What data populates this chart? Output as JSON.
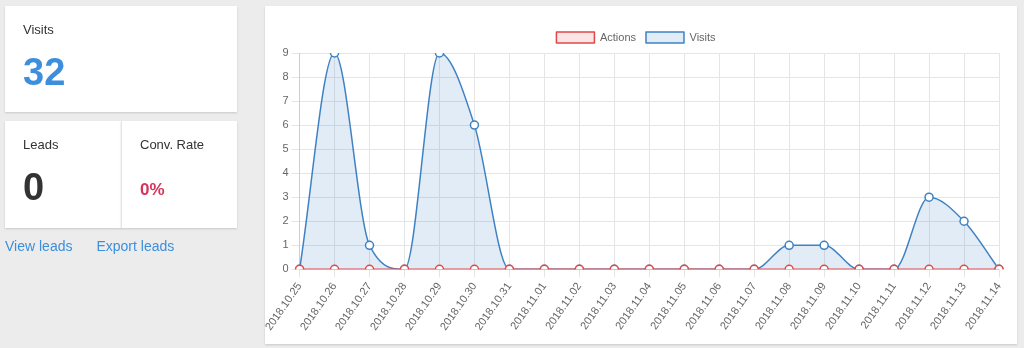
{
  "chart_data": [
    {
      "type": "other",
      "title": "Visits",
      "annotations": [
        "32"
      ]
    },
    {
      "type": "other",
      "title": "Leads",
      "annotations": [
        "0"
      ]
    },
    {
      "type": "other",
      "title": "Conv. Rate",
      "annotations": [
        "0%"
      ]
    },
    {
      "type": "other",
      "annotations": [
        "View leads",
        "Export leads"
      ]
    },
    {
      "type": "line",
      "categories": [
        "2018.10.25",
        "2018.10.26",
        "2018.10.27",
        "2018.10.28",
        "2018.10.29",
        "2018.10.30",
        "2018.10.31",
        "2018.11.01",
        "2018.11.02",
        "2018.11.03",
        "2018.11.04",
        "2018.11.05",
        "2018.11.06",
        "2018.11.07",
        "2018.11.08",
        "2018.11.09",
        "2018.11.10",
        "2018.11.11",
        "2018.11.12",
        "2018.11.13",
        "2018.11.14"
      ],
      "series": [
        {
          "name": "Actions",
          "color": "#e04848",
          "values": [
            0,
            0,
            0,
            0,
            0,
            0,
            0,
            0,
            0,
            0,
            0,
            0,
            0,
            0,
            0,
            0,
            0,
            0,
            0,
            0,
            0
          ]
        },
        {
          "name": "Visits",
          "type": "area",
          "color": "#3e82c4",
          "values": [
            0,
            9,
            1,
            0,
            9,
            6,
            0,
            0,
            0,
            0,
            0,
            0,
            0,
            0,
            1,
            1,
            0,
            0,
            3,
            2,
            0
          ]
        }
      ],
      "ylim": [
        0,
        9
      ],
      "yticks": [
        0,
        1,
        2,
        3,
        4,
        5,
        6,
        7,
        8,
        9
      ],
      "grid": true,
      "legend": "top",
      "marker": "circle"
    }
  ]
}
